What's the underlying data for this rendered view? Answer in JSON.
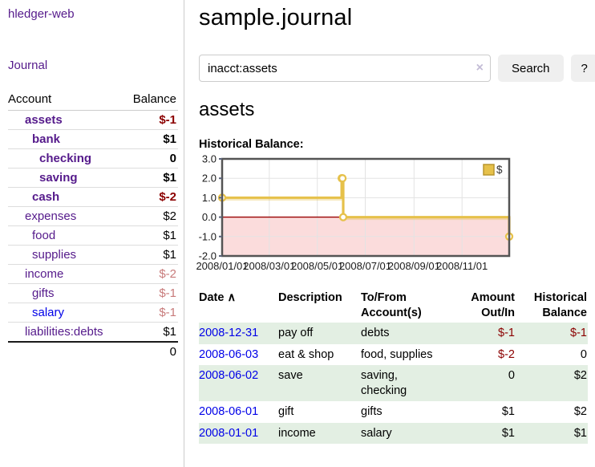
{
  "app": {
    "brand": "hledger-web"
  },
  "sidebar": {
    "journal_label": "Journal",
    "account_header": "Account",
    "balance_header": "Balance",
    "accounts": [
      {
        "name": "assets",
        "depth": 1,
        "emphasis": true,
        "link_color": "purple",
        "balance": "$-1",
        "balance_style": "neg-strong"
      },
      {
        "name": "bank",
        "depth": 2,
        "emphasis": true,
        "link_color": "purple",
        "balance": "$1",
        "balance_style": ""
      },
      {
        "name": "checking",
        "depth": 3,
        "emphasis": true,
        "link_color": "purple",
        "balance": "0",
        "balance_style": ""
      },
      {
        "name": "saving",
        "depth": 3,
        "emphasis": true,
        "link_color": "purple",
        "balance": "$1",
        "balance_style": ""
      },
      {
        "name": "cash",
        "depth": 2,
        "emphasis": true,
        "link_color": "purple",
        "balance": "$-2",
        "balance_style": "neg-strong"
      },
      {
        "name": "expenses",
        "depth": 1,
        "emphasis": false,
        "link_color": "purple",
        "balance": "$2",
        "balance_style": ""
      },
      {
        "name": "food",
        "depth": 2,
        "emphasis": false,
        "link_color": "purple",
        "balance": "$1",
        "balance_style": ""
      },
      {
        "name": "supplies",
        "depth": 2,
        "emphasis": false,
        "link_color": "purple",
        "balance": "$1",
        "balance_style": ""
      },
      {
        "name": "income",
        "depth": 1,
        "emphasis": false,
        "link_color": "purple",
        "balance": "$-2",
        "balance_style": "neg-faded"
      },
      {
        "name": "gifts",
        "depth": 2,
        "emphasis": false,
        "link_color": "purple",
        "balance": "$-1",
        "balance_style": "neg-faded"
      },
      {
        "name": "salary",
        "depth": 2,
        "emphasis": false,
        "link_color": "blue",
        "balance": "$-1",
        "balance_style": "neg-faded"
      },
      {
        "name": "liabilities:debts",
        "depth": 1,
        "emphasis": false,
        "link_color": "purple",
        "balance": "$1",
        "balance_style": ""
      }
    ],
    "total": "0"
  },
  "header": {
    "title": "sample.journal"
  },
  "search": {
    "query": "inacct:assets",
    "clear_icon": "×",
    "button_label": "Search",
    "help_label": "?"
  },
  "account_page": {
    "title": "assets",
    "chart_title": "Historical Balance:"
  },
  "chart_data": {
    "type": "line",
    "title": "Historical Balance:",
    "step": true,
    "series": [
      {
        "name": "$",
        "color": "#e6c14a",
        "points": [
          [
            "2008-01-01",
            1
          ],
          [
            "2008-06-01",
            2
          ],
          [
            "2008-06-02",
            2
          ],
          [
            "2008-06-03",
            0
          ],
          [
            "2008-12-31",
            -1
          ]
        ]
      }
    ],
    "x_range": [
      "2008-01-01",
      "2008-12-31"
    ],
    "x_ticks": [
      "2008/01/01",
      "2008/03/01",
      "2008/05/01",
      "2008/07/01",
      "2008/09/01",
      "2008/11/01"
    ],
    "y_ticks": [
      3.0,
      2.0,
      1.0,
      0.0,
      -1.0,
      -2.0
    ],
    "ylim": [
      -2,
      3
    ],
    "grid": true,
    "legend_position": "top-right",
    "negative_region_color": "#fbdcdc",
    "zero_line_color": "#990000"
  },
  "register": {
    "headers": {
      "date": "Date",
      "sort_icon": "∧",
      "description": "Description",
      "accounts": "To/From Account(s)",
      "amount": "Amount Out/In",
      "balance": "Historical Balance"
    },
    "rows": [
      {
        "date": "2008-12-31",
        "description": "pay off",
        "accounts": "debts",
        "amount": "$-1",
        "amount_style": "neg",
        "balance": "$-1",
        "balance_style": "neg"
      },
      {
        "date": "2008-06-03",
        "description": "eat & shop",
        "accounts": "food, supplies",
        "amount": "$-2",
        "amount_style": "neg",
        "balance": "0",
        "balance_style": ""
      },
      {
        "date": "2008-06-02",
        "description": "save",
        "accounts": "saving, checking",
        "amount": "0",
        "amount_style": "",
        "balance": "$2",
        "balance_style": ""
      },
      {
        "date": "2008-06-01",
        "description": "gift",
        "accounts": "gifts",
        "amount": "$1",
        "amount_style": "",
        "balance": "$2",
        "balance_style": ""
      },
      {
        "date": "2008-01-01",
        "description": "income",
        "accounts": "salary",
        "amount": "$1",
        "amount_style": "",
        "balance": "$1",
        "balance_style": ""
      }
    ]
  }
}
